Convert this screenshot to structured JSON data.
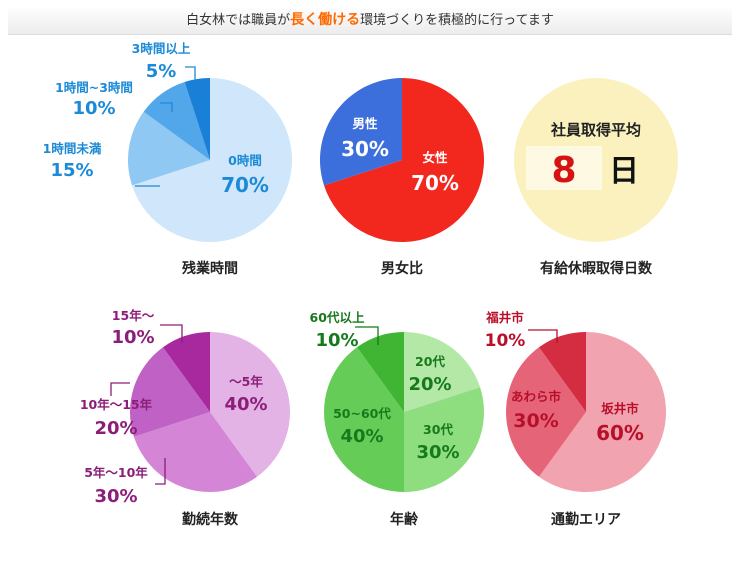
{
  "header": {
    "pre": "白女林では職員が",
    "highlight": "長く働ける",
    "post": "環境づくりを積極的に行ってます"
  },
  "chart_data": [
    {
      "type": "pie",
      "title": "残業時間",
      "slices": [
        {
          "label": "0時間",
          "value": 70,
          "color": "#cfe6fb",
          "text_color": "#1c8ad6"
        },
        {
          "label": "1時間未満",
          "value": 15,
          "color": "#8fc8f2",
          "text_color": "#1c8ad6"
        },
        {
          "label": "1時間~3時間",
          "value": 10,
          "color": "#52a6ea",
          "text_color": "#1c8ad6"
        },
        {
          "label": "3時間以上",
          "value": 5,
          "color": "#1a7fd6",
          "text_color": "#1c8ad6"
        }
      ]
    },
    {
      "type": "pie",
      "title": "男女比",
      "slices": [
        {
          "label": "女性",
          "value": 70,
          "color": "#f2281e",
          "text_color": "#ffffff"
        },
        {
          "label": "男性",
          "value": 30,
          "color": "#3c6fdc",
          "text_color": "#ffffff"
        }
      ]
    },
    {
      "type": "pie",
      "title": "有給休暇取得日数",
      "caption": "社員取得平均",
      "value": "8",
      "unit": "日",
      "color": "#fbf1bf"
    },
    {
      "type": "pie",
      "title": "勤続年数",
      "slices": [
        {
          "label": "～5年",
          "value": 40,
          "color": "#e2b3e4",
          "text_color": "#8c1e7a"
        },
        {
          "label": "5年～10年",
          "value": 30,
          "color": "#d485d6",
          "text_color": "#8c1e7a"
        },
        {
          "label": "10年～15年",
          "value": 20,
          "color": "#c061c6",
          "text_color": "#8c1e7a"
        },
        {
          "label": "15年～",
          "value": 10,
          "color": "#a8289e",
          "text_color": "#8c1e7a"
        }
      ]
    },
    {
      "type": "pie",
      "title": "年齢",
      "slices": [
        {
          "label": "20代",
          "value": 20,
          "color": "#b3e8a6",
          "text_color": "#167a1c"
        },
        {
          "label": "30代",
          "value": 30,
          "color": "#8edd7e",
          "text_color": "#167a1c"
        },
        {
          "label": "50~60代",
          "value": 40,
          "color": "#66cc58",
          "text_color": "#167a1c"
        },
        {
          "label": "60代以上",
          "value": 10,
          "color": "#3fb533",
          "text_color": "#167a1c"
        }
      ]
    },
    {
      "type": "pie",
      "title": "通勤エリア",
      "slices": [
        {
          "label": "坂井市",
          "value": 60,
          "color": "#f2a3b0",
          "text_color": "#b8102a"
        },
        {
          "label": "あわら市",
          "value": 30,
          "color": "#e66478",
          "text_color": "#b8102a"
        },
        {
          "label": "福井市",
          "value": 10,
          "color": "#d42c40",
          "text_color": "#b8102a"
        }
      ]
    }
  ]
}
